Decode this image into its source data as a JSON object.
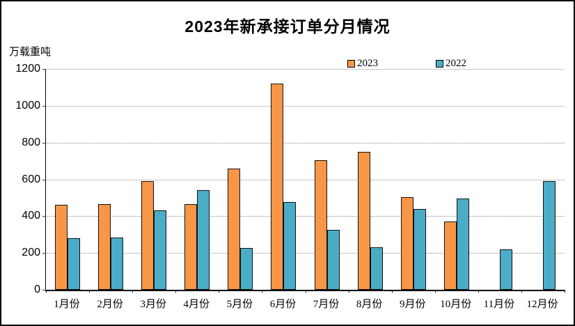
{
  "chart_data": {
    "type": "bar",
    "title": "2023年新承接订单分月情况",
    "unit_label": "万载重吨",
    "categories": [
      "1月份",
      "2月份",
      "3月份",
      "4月份",
      "5月份",
      "6月份",
      "7月份",
      "8月份",
      "9月份",
      "10月份",
      "11月份",
      "12月份"
    ],
    "series": [
      {
        "name": "2023",
        "color": "#F79646",
        "values": [
          460,
          464,
          590,
          467,
          658,
          1121,
          705,
          751,
          503,
          370,
          0,
          0
        ]
      },
      {
        "name": "2022",
        "color": "#4BACC6",
        "values": [
          280,
          283,
          430,
          543,
          228,
          478,
          325,
          232,
          439,
          497,
          220,
          590
        ]
      }
    ],
    "ylim": [
      0,
      1200
    ],
    "yticks": [
      0,
      200,
      400,
      600,
      800,
      1000,
      1200
    ],
    "grid": "horizontal-dotted",
    "legend_position": "top-center",
    "axis_color": "#000000",
    "gridline_color": "#8c8c8c",
    "background_color": "#ffffff"
  }
}
